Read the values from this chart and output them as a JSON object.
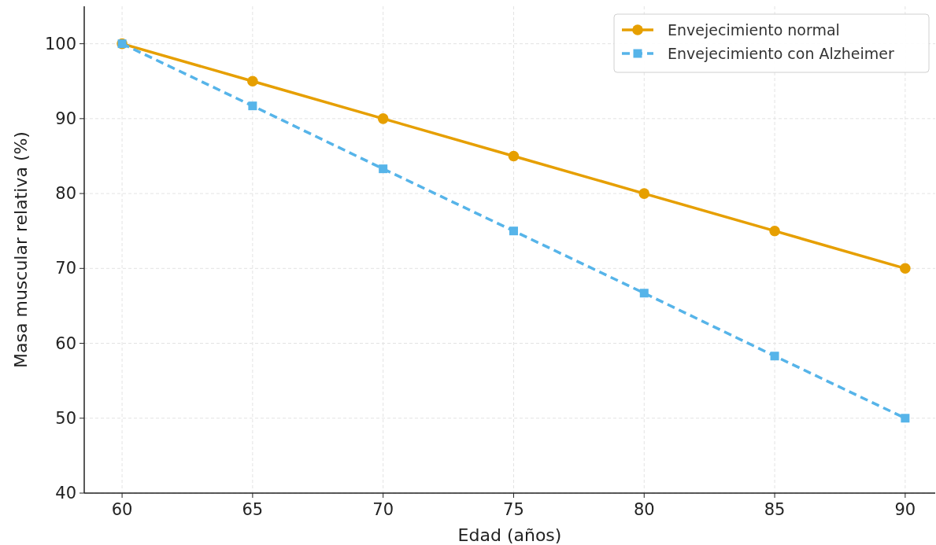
{
  "chart_data": {
    "type": "line",
    "xlabel": "Edad (años)",
    "ylabel": "Masa muscular relativa (%)",
    "x": [
      60,
      65,
      70,
      75,
      80,
      85,
      90
    ],
    "series": [
      {
        "name": "Envejecimiento normal",
        "color": "#e69f00",
        "marker": "circle",
        "line_style": "solid",
        "values": [
          100,
          95,
          90,
          85,
          80,
          75,
          70
        ]
      },
      {
        "name": "Envejecimiento con Alzheimer",
        "color": "#56b4e9",
        "marker": "square",
        "line_style": "dashed",
        "values": [
          100,
          91.7,
          83.3,
          75,
          66.7,
          58.3,
          50
        ]
      }
    ],
    "xlim": [
      58.55,
      91.15
    ],
    "xticks": [
      60,
      65,
      70,
      75,
      80,
      85,
      90
    ],
    "ylim": [
      40,
      105
    ],
    "yticks": [
      40,
      50,
      60,
      70,
      80,
      90,
      100
    ],
    "grid": true,
    "legend": "top right"
  }
}
